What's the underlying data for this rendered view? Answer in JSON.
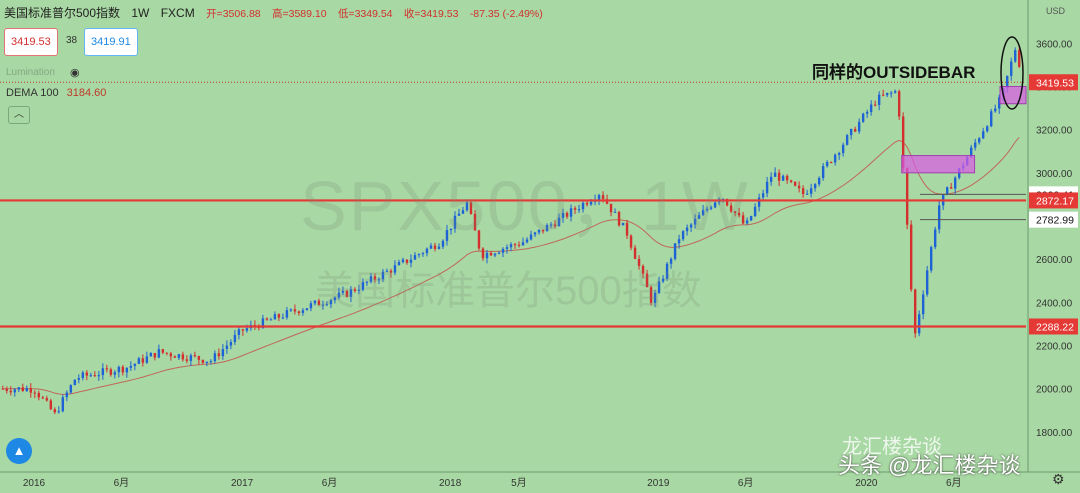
{
  "header": {
    "symbol": "美国标准普尔500指数",
    "interval": "1W",
    "source": "FXCM",
    "open": "开=3506.88",
    "high": "高=3589.10",
    "low": "低=3349.54",
    "close": "收=3419.53",
    "change": "-87.35 (-2.49%)"
  },
  "price_boxes": {
    "bid": "3419.53",
    "spread": "38",
    "ask": "3419.91"
  },
  "indicator": {
    "label": "DEMA 100",
    "value": "3184.60",
    "faded_label": "Lumination"
  },
  "collapse_icon": "chevron-icon",
  "watermark": {
    "line1": "SPX500，1W",
    "line2": "美国标准普尔500指数"
  },
  "annotation": "同样的OUTSIDEBAR",
  "footer": {
    "brand1": "龙汇楼杂谈",
    "brand2": "头条 @龙汇楼杂谈"
  },
  "axis": {
    "currency": "USD",
    "yticks": [
      "3600.00",
      "3400.00",
      "3200.00",
      "3000.00",
      "2800.00",
      "2600.00",
      "2400.00",
      "2200.00",
      "2000.00",
      "1800.00"
    ],
    "xticks": [
      "2016",
      "6月",
      "2017",
      "6月",
      "2018",
      "5月",
      "2019",
      "6月",
      "2020",
      "6月"
    ]
  },
  "price_labels": [
    {
      "value": "3419.53",
      "color": "#e53935"
    },
    {
      "value": "2900.41",
      "color": "#ffffff"
    },
    {
      "value": "2872.17",
      "color": "#e53935"
    },
    {
      "value": "2782.99",
      "color": "#ffffff"
    },
    {
      "value": "2288.22",
      "color": "#e53935"
    }
  ],
  "chart_data": {
    "type": "candlestick",
    "title": "美国标准普尔500指数",
    "timeframe": "1W",
    "ylim": [
      1800,
      3700
    ],
    "x": [
      "2016",
      "6月",
      "2017",
      "6月",
      "2018",
      "5月",
      "2019",
      "6月",
      "2020",
      "6月"
    ],
    "series": [
      {
        "name": "SPX500",
        "close_path": [
          [
            2016.0,
            2000
          ],
          [
            2016.1,
            1880
          ],
          [
            2016.2,
            2050
          ],
          [
            2016.45,
            2100
          ],
          [
            2016.6,
            2170
          ],
          [
            2016.85,
            2130
          ],
          [
            2017.0,
            2270
          ],
          [
            2017.25,
            2360
          ],
          [
            2017.5,
            2440
          ],
          [
            2017.75,
            2570
          ],
          [
            2017.95,
            2680
          ],
          [
            2018.08,
            2860
          ],
          [
            2018.15,
            2620
          ],
          [
            2018.35,
            2680
          ],
          [
            2018.55,
            2800
          ],
          [
            2018.72,
            2910
          ],
          [
            2018.85,
            2720
          ],
          [
            2018.97,
            2400
          ],
          [
            2019.1,
            2700
          ],
          [
            2019.3,
            2900
          ],
          [
            2019.42,
            2750
          ],
          [
            2019.55,
            3000
          ],
          [
            2019.7,
            2900
          ],
          [
            2019.9,
            3150
          ],
          [
            2020.05,
            3340
          ],
          [
            2020.15,
            3380
          ],
          [
            2020.2,
            2700
          ],
          [
            2020.23,
            2230
          ],
          [
            2020.35,
            2850
          ],
          [
            2020.5,
            3100
          ],
          [
            2020.65,
            3350
          ],
          [
            2020.72,
            3590
          ],
          [
            2020.75,
            3420
          ]
        ]
      },
      {
        "name": "DEMA 100",
        "value": 3184.6
      }
    ],
    "levels": [
      2900.41,
      2872.17,
      2782.99,
      2288.22
    ],
    "last_price": 3419.53
  }
}
